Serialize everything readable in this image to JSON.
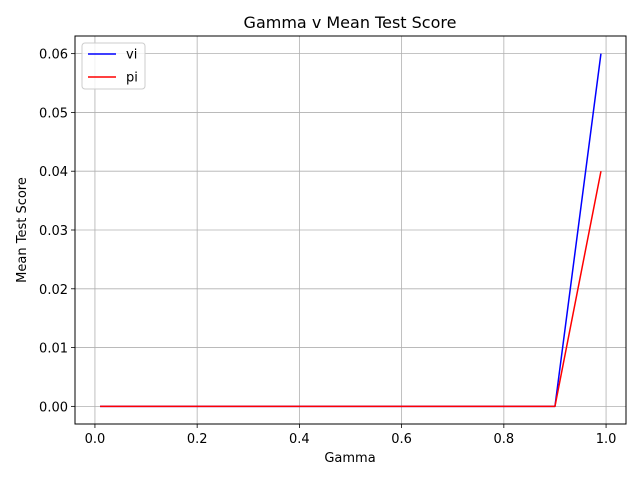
{
  "chart_data": {
    "type": "line",
    "title": "Gamma v Mean Test Score",
    "xlabel": "Gamma",
    "ylabel": "Mean Test Score",
    "xlim": [
      -0.039,
      1.039
    ],
    "ylim": [
      -0.003,
      0.063
    ],
    "xticks": [
      0.0,
      0.2,
      0.4,
      0.6,
      0.8,
      1.0
    ],
    "xtick_labels": [
      "0.0",
      "0.2",
      "0.4",
      "0.6",
      "0.8",
      "1.0"
    ],
    "yticks": [
      0.0,
      0.01,
      0.02,
      0.03,
      0.04,
      0.05,
      0.06
    ],
    "ytick_labels": [
      "0.00",
      "0.01",
      "0.02",
      "0.03",
      "0.04",
      "0.05",
      "0.06"
    ],
    "grid": true,
    "legend_position": "top-left",
    "series": [
      {
        "name": "vi",
        "color": "#0000ff",
        "x": [
          0.01,
          0.1,
          0.2,
          0.3,
          0.4,
          0.5,
          0.6,
          0.7,
          0.8,
          0.9,
          0.99
        ],
        "y": [
          0.0,
          0.0,
          0.0,
          0.0,
          0.0,
          0.0,
          0.0,
          0.0,
          0.0,
          0.0,
          0.06
        ]
      },
      {
        "name": "pi",
        "color": "#ff0000",
        "x": [
          0.01,
          0.1,
          0.2,
          0.3,
          0.4,
          0.5,
          0.6,
          0.7,
          0.8,
          0.9,
          0.99
        ],
        "y": [
          0.0,
          0.0,
          0.0,
          0.0,
          0.0,
          0.0,
          0.0,
          0.0,
          0.0,
          0.0,
          0.04
        ]
      }
    ]
  }
}
